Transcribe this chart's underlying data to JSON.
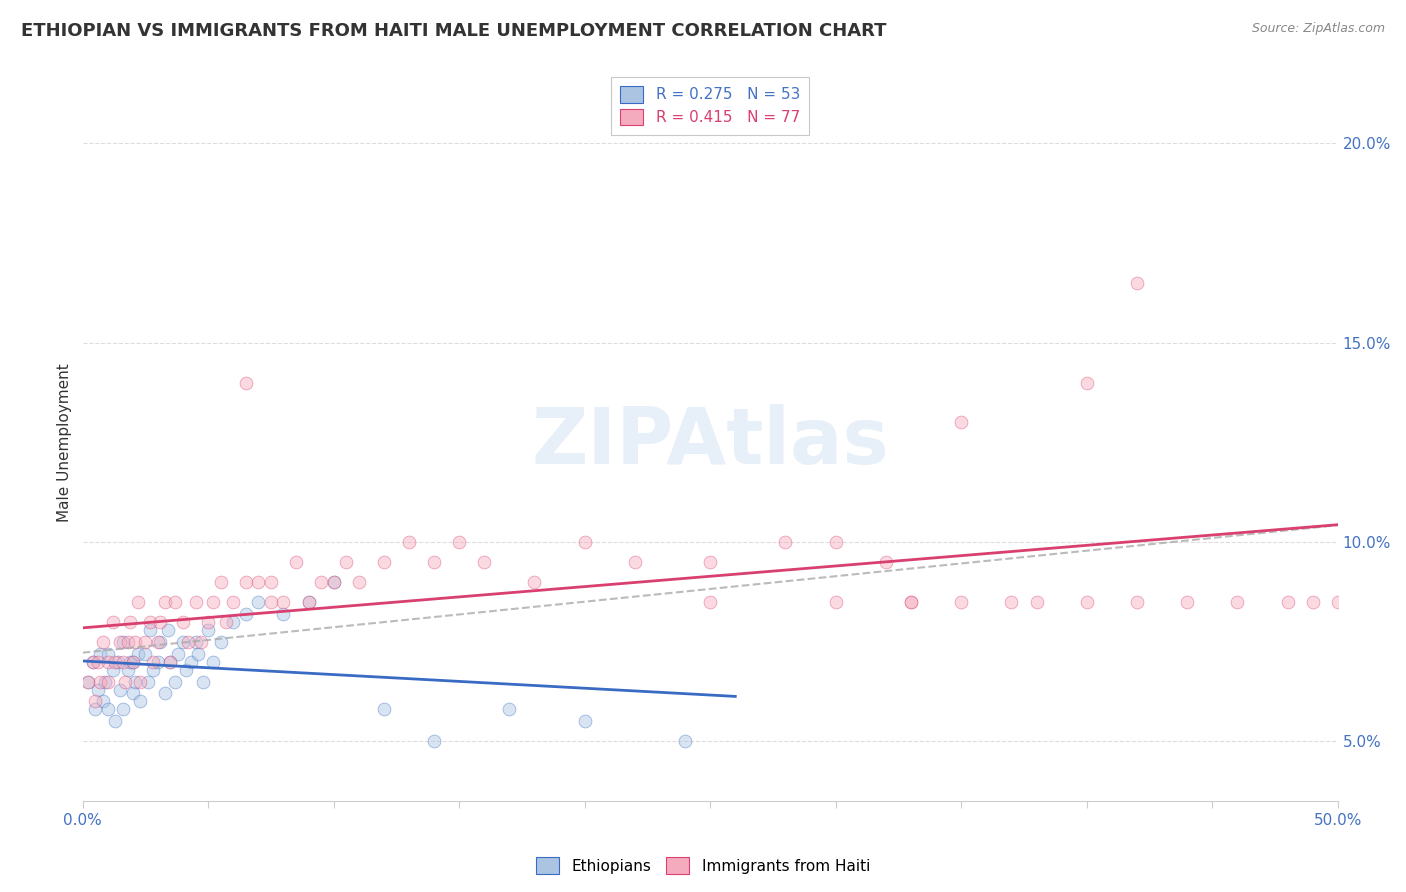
{
  "title": "ETHIOPIAN VS IMMIGRANTS FROM HAITI MALE UNEMPLOYMENT CORRELATION CHART",
  "source": "Source: ZipAtlas.com",
  "ylabel": "Male Unemployment",
  "xlabel": "",
  "xlim": [
    0.0,
    0.5
  ],
  "ylim": [
    0.035,
    0.215
  ],
  "ytick_positions": [
    0.05,
    0.1,
    0.15,
    0.2
  ],
  "ytick_labels": [
    "5.0%",
    "10.0%",
    "15.0%",
    "20.0%"
  ],
  "background_color": "#ffffff",
  "grid_color": "#dddddd",
  "title_fontsize": 13,
  "axis_label_fontsize": 11,
  "tick_fontsize": 11,
  "legend_fontsize": 11,
  "marker_size": 85,
  "marker_alpha": 0.45,
  "ethiopians_color": "#aac4e2",
  "haiti_color": "#f5abbe",
  "trendline_eth_color": "#3a6bc4",
  "trendline_haiti_color": "#d94070",
  "dashed_color": "#aaaaaa",
  "eth_x": [
    0.002,
    0.004,
    0.005,
    0.006,
    0.007,
    0.008,
    0.009,
    0.01,
    0.01,
    0.012,
    0.013,
    0.014,
    0.015,
    0.016,
    0.016,
    0.018,
    0.019,
    0.02,
    0.02,
    0.021,
    0.022,
    0.023,
    0.025,
    0.026,
    0.027,
    0.028,
    0.03,
    0.031,
    0.033,
    0.034,
    0.035,
    0.037,
    0.038,
    0.04,
    0.041,
    0.043,
    0.045,
    0.046,
    0.048,
    0.05,
    0.052,
    0.055,
    0.06,
    0.065,
    0.07,
    0.08,
    0.09,
    0.1,
    0.12,
    0.14,
    0.17,
    0.2,
    0.24
  ],
  "eth_y": [
    0.065,
    0.07,
    0.058,
    0.063,
    0.072,
    0.06,
    0.065,
    0.058,
    0.072,
    0.068,
    0.055,
    0.07,
    0.063,
    0.075,
    0.058,
    0.068,
    0.07,
    0.062,
    0.07,
    0.065,
    0.072,
    0.06,
    0.072,
    0.065,
    0.078,
    0.068,
    0.07,
    0.075,
    0.062,
    0.078,
    0.07,
    0.065,
    0.072,
    0.075,
    0.068,
    0.07,
    0.075,
    0.072,
    0.065,
    0.078,
    0.07,
    0.075,
    0.08,
    0.082,
    0.085,
    0.082,
    0.085,
    0.09,
    0.058,
    0.05,
    0.058,
    0.055,
    0.05
  ],
  "haiti_x": [
    0.002,
    0.004,
    0.005,
    0.006,
    0.007,
    0.008,
    0.01,
    0.01,
    0.012,
    0.013,
    0.015,
    0.016,
    0.017,
    0.018,
    0.019,
    0.02,
    0.021,
    0.022,
    0.023,
    0.025,
    0.027,
    0.028,
    0.03,
    0.031,
    0.033,
    0.035,
    0.037,
    0.04,
    0.042,
    0.045,
    0.047,
    0.05,
    0.052,
    0.055,
    0.057,
    0.06,
    0.065,
    0.065,
    0.07,
    0.075,
    0.075,
    0.08,
    0.085,
    0.09,
    0.095,
    0.1,
    0.105,
    0.11,
    0.12,
    0.13,
    0.14,
    0.15,
    0.16,
    0.18,
    0.2,
    0.22,
    0.25,
    0.28,
    0.3,
    0.32,
    0.33,
    0.35,
    0.37,
    0.4,
    0.42,
    0.25,
    0.3,
    0.33,
    0.35,
    0.38,
    0.4,
    0.42,
    0.44,
    0.46,
    0.48,
    0.49,
    0.5
  ],
  "haiti_y": [
    0.065,
    0.07,
    0.06,
    0.07,
    0.065,
    0.075,
    0.07,
    0.065,
    0.08,
    0.07,
    0.075,
    0.07,
    0.065,
    0.075,
    0.08,
    0.07,
    0.075,
    0.085,
    0.065,
    0.075,
    0.08,
    0.07,
    0.075,
    0.08,
    0.085,
    0.07,
    0.085,
    0.08,
    0.075,
    0.085,
    0.075,
    0.08,
    0.085,
    0.09,
    0.08,
    0.085,
    0.14,
    0.09,
    0.09,
    0.085,
    0.09,
    0.085,
    0.095,
    0.085,
    0.09,
    0.09,
    0.095,
    0.09,
    0.095,
    0.1,
    0.095,
    0.1,
    0.095,
    0.09,
    0.1,
    0.095,
    0.095,
    0.1,
    0.1,
    0.095,
    0.085,
    0.13,
    0.085,
    0.14,
    0.165,
    0.085,
    0.085,
    0.085,
    0.085,
    0.085,
    0.085,
    0.085,
    0.085,
    0.085,
    0.085,
    0.085,
    0.085
  ]
}
